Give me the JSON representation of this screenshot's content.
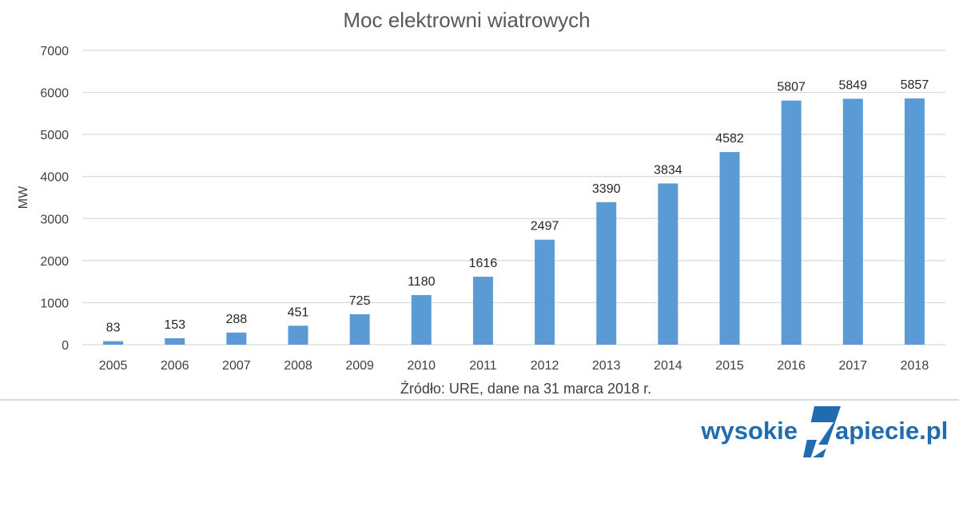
{
  "chart_data": {
    "type": "bar",
    "title": "Moc elektrowni wiatrowych",
    "ylabel": "MW",
    "xlabel": "",
    "ylim": [
      0,
      7000
    ],
    "yticks": [
      0,
      1000,
      2000,
      3000,
      4000,
      5000,
      6000,
      7000
    ],
    "grid": true,
    "bar_color": "#5b9bd5",
    "categories": [
      "2005",
      "2006",
      "2007",
      "2008",
      "2009",
      "2010",
      "2011",
      "2012",
      "2013",
      "2014",
      "2015",
      "2016",
      "2017",
      "2018"
    ],
    "values": [
      83,
      153,
      288,
      451,
      725,
      1180,
      1616,
      2497,
      3390,
      3834,
      4582,
      5807,
      5849,
      5857
    ],
    "source_note": "Źródło: URE, dane na 31 marca 2018 r."
  },
  "logo": {
    "text_left": "wysokie",
    "text_right": "apiecie.pl",
    "color": "#1f6cb0"
  }
}
